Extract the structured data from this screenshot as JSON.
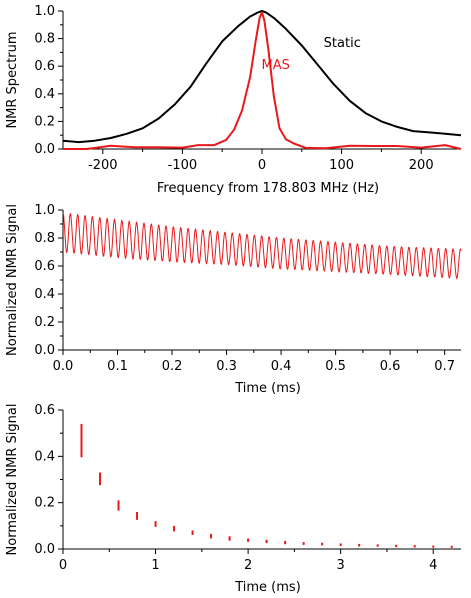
{
  "chart_data": [
    {
      "type": "line",
      "title": "",
      "xlabel": "Frequency from 178.803 MHz (Hz)",
      "ylabel": "NMR Spectrum",
      "xlim": [
        -250,
        250
      ],
      "ylim": [
        0,
        1.0
      ],
      "xticks": [
        -200,
        -100,
        0,
        100,
        200
      ],
      "xtick_labels": [
        "-200",
        "-100",
        "0",
        "100",
        "200"
      ],
      "yticks": [
        0,
        0.2,
        0.4,
        0.6,
        0.8,
        1.0
      ],
      "ytick_labels": [
        "0.0",
        "0.2",
        "0.4",
        "0.6",
        "0.8",
        "1.0"
      ],
      "grid": false,
      "series": [
        {
          "name": "Static",
          "color": "#000000",
          "x": [
            -250,
            -230,
            -210,
            -190,
            -170,
            -150,
            -130,
            -110,
            -90,
            -70,
            -50,
            -30,
            -15,
            -5,
            0,
            5,
            15,
            30,
            50,
            70,
            90,
            110,
            130,
            150,
            170,
            190,
            210,
            230,
            250
          ],
          "y": [
            0.06,
            0.05,
            0.06,
            0.08,
            0.11,
            0.15,
            0.22,
            0.32,
            0.45,
            0.62,
            0.78,
            0.89,
            0.96,
            0.99,
            1.0,
            0.99,
            0.95,
            0.87,
            0.75,
            0.61,
            0.47,
            0.35,
            0.26,
            0.2,
            0.16,
            0.13,
            0.12,
            0.11,
            0.1
          ]
        },
        {
          "name": "MAS",
          "color": "#e8191b",
          "x": [
            -250,
            -220,
            -190,
            -160,
            -130,
            -100,
            -80,
            -60,
            -45,
            -35,
            -25,
            -15,
            -8,
            -3,
            0,
            3,
            8,
            15,
            22,
            30,
            40,
            55,
            80,
            110,
            140,
            170,
            200,
            230,
            250
          ],
          "y": [
            0.01,
            0.0,
            0.02,
            0.0,
            0.02,
            0.01,
            0.02,
            0.04,
            0.07,
            0.14,
            0.28,
            0.52,
            0.78,
            0.95,
            0.99,
            0.93,
            0.72,
            0.38,
            0.15,
            0.07,
            0.04,
            0.02,
            0.01,
            0.02,
            0.01,
            0.03,
            0.01,
            0.02,
            0.01
          ]
        }
      ]
    },
    {
      "type": "line",
      "title": "",
      "xlabel": "Time (ms)",
      "ylabel": "Normalized NMR Signal",
      "xlim": [
        0,
        0.73
      ],
      "ylim": [
        0,
        1.0
      ],
      "xticks": [
        0,
        0.1,
        0.2,
        0.3,
        0.4,
        0.5,
        0.6,
        0.7
      ],
      "xtick_labels": [
        "0.0",
        "0.1",
        "0.2",
        "0.3",
        "0.4",
        "0.5",
        "0.6",
        "0.7"
      ],
      "yticks": [
        0,
        0.2,
        0.4,
        0.6,
        0.8,
        1.0
      ],
      "ytick_labels": [
        "0.0",
        "0.2",
        "0.4",
        "0.6",
        "0.8",
        "1.0"
      ],
      "grid": false,
      "series": [
        {
          "name": "",
          "color": "#e8191b",
          "oscillation_period_ms": 0.0135,
          "upper_envelope": {
            "x": [
              0,
              0.1,
              0.2,
              0.3,
              0.4,
              0.5,
              0.6,
              0.73
            ],
            "y": [
              0.98,
              0.93,
              0.88,
              0.84,
              0.8,
              0.77,
              0.74,
              0.72
            ]
          },
          "lower_envelope": {
            "x": [
              0,
              0.1,
              0.2,
              0.3,
              0.4,
              0.5,
              0.6,
              0.73
            ],
            "y": [
              0.7,
              0.66,
              0.63,
              0.61,
              0.58,
              0.56,
              0.54,
              0.51
            ]
          }
        }
      ]
    },
    {
      "type": "scatter",
      "title": "",
      "xlabel": "Time (ms)",
      "ylabel": "Normalized NMR Signal",
      "xlim": [
        0,
        4.3
      ],
      "ylim": [
        0,
        0.6
      ],
      "xticks": [
        0,
        1,
        2,
        3,
        4
      ],
      "xtick_labels": [
        "0",
        "1",
        "2",
        "3",
        "4"
      ],
      "yticks": [
        0,
        0.2,
        0.4,
        0.6
      ],
      "ytick_labels": [
        "0.0",
        "0.2",
        "0.4",
        "0.6"
      ],
      "grid": false,
      "series": [
        {
          "name": "",
          "color": "#e8191b",
          "x": [
            0.2,
            0.4,
            0.6,
            0.8,
            1.0,
            1.2,
            1.4,
            1.6,
            1.8,
            2.0,
            2.2,
            2.4,
            2.6,
            2.8,
            3.0,
            3.2,
            3.4,
            3.6,
            3.8,
            4.0,
            4.2
          ],
          "y_high": [
            0.54,
            0.33,
            0.21,
            0.16,
            0.12,
            0.1,
            0.08,
            0.065,
            0.055,
            0.045,
            0.04,
            0.035,
            0.03,
            0.027,
            0.024,
            0.022,
            0.02,
            0.018,
            0.017,
            0.015,
            0.014
          ],
          "y_low": [
            0.4,
            0.28,
            0.17,
            0.13,
            0.1,
            0.08,
            0.065,
            0.05,
            0.04,
            0.035,
            0.03,
            0.025,
            0.022,
            0.02,
            0.017,
            0.015,
            0.014,
            0.012,
            0.011,
            0.01,
            0.009
          ]
        }
      ]
    }
  ]
}
